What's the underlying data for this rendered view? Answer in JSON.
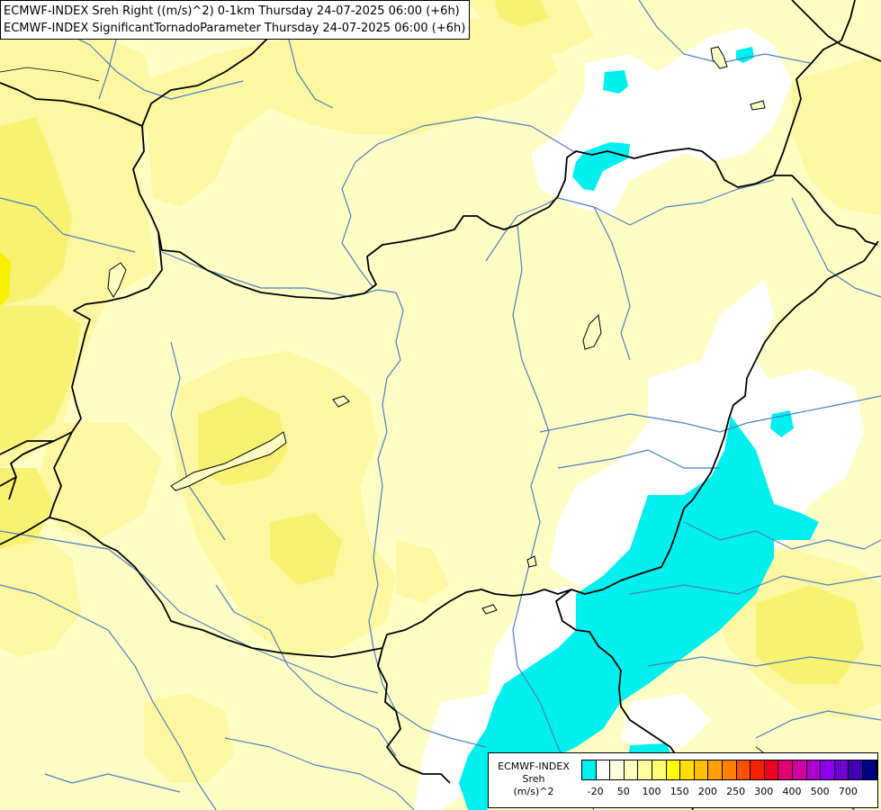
{
  "header": {
    "line1": "ECMWF-INDEX Sreh Right ((m/s)^2) 0-1km Thursday 24-07-2025 06:00 (+6h)",
    "line2": "ECMWF-INDEX SignificantTornadoParameter Thursday 24-07-2025 06:00 (+6h)"
  },
  "legend": {
    "model": "ECMWF-INDEX",
    "param": "Sreh",
    "unit": "(m/s)^2",
    "colors": [
      "#00f0f0",
      "#ffffff",
      "#fefee0",
      "#fefec0",
      "#fefea0",
      "#fefe70",
      "#fefe00",
      "#fee000",
      "#fec000",
      "#fea000",
      "#fe8000",
      "#fe5000",
      "#fe2000",
      "#f00020",
      "#e00070",
      "#d000a0",
      "#b000d0",
      "#9000f0",
      "#7000d0",
      "#4000b0",
      "#000080"
    ],
    "tick_labels": [
      "-20",
      "50",
      "100",
      "150",
      "200",
      "250",
      "300",
      "400",
      "500",
      "700"
    ]
  },
  "map": {
    "background": "#fdfdc4",
    "colors": {
      "pale": "#fdfdc4",
      "light_yellow": "#fcf7a0",
      "yellow": "#f9f171",
      "bright_yellow": "#f7f000",
      "white": "#ffffff",
      "cyan": "#00f0f0",
      "river": "#4d7fbf",
      "border": "#000000"
    }
  }
}
